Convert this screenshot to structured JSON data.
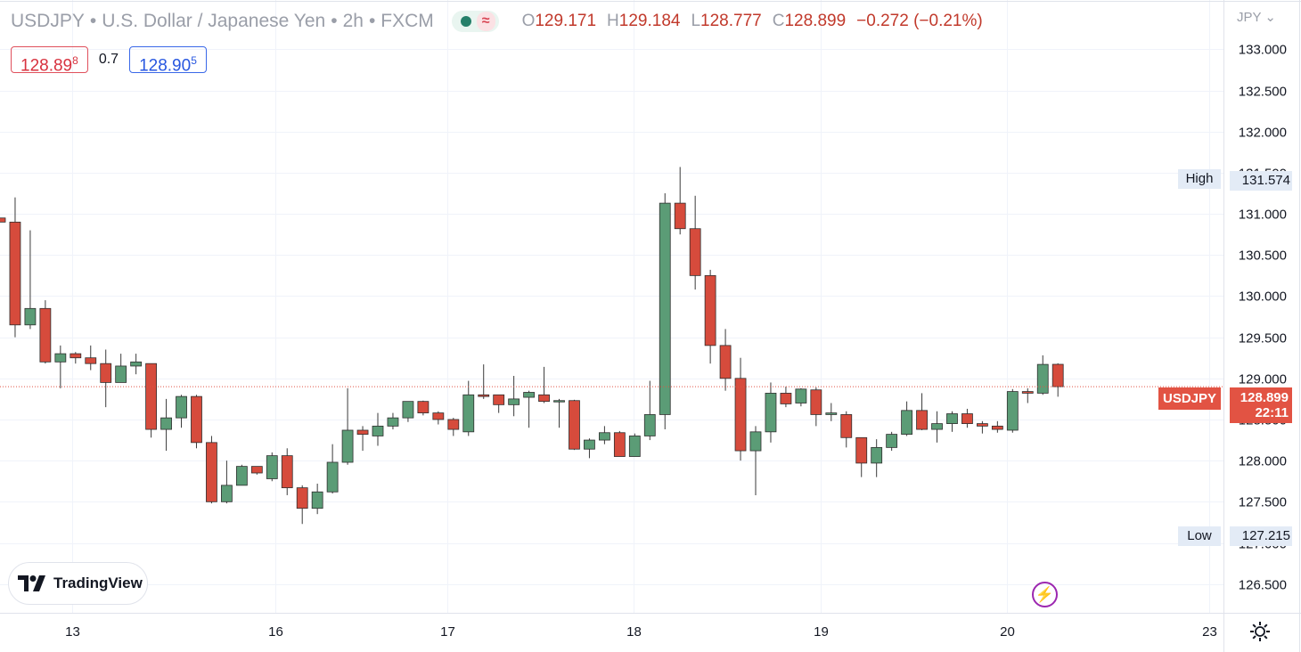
{
  "header": {
    "symbol": "USDJPY",
    "description": "U.S. Dollar / Japanese Yen",
    "interval": "2h",
    "exchange": "FXCM",
    "indicator_icon": "circle-icon",
    "indicator_wave": "≈"
  },
  "ohlc": {
    "o_label": "O",
    "o": "129.171",
    "h_label": "H",
    "h": "129.184",
    "l_label": "L",
    "l": "128.777",
    "c_label": "C",
    "c": "128.899",
    "change": "−0.272 (−0.21%)"
  },
  "quote": {
    "bid_main": "128.89",
    "bid_small": "8",
    "spread": "0.7",
    "ask_main": "128.90",
    "ask_small": "5"
  },
  "axis": {
    "currency": "JPY",
    "currency_caret": "⌄"
  },
  "high_marker": {
    "label": "High",
    "value": "131.574"
  },
  "low_marker": {
    "label": "Low",
    "value": "127.215"
  },
  "current_price": {
    "symbol": "USDJPY",
    "value": "128.899",
    "countdown": "22:11"
  },
  "branding": {
    "name": "TradingView"
  },
  "colors": {
    "up": "#5b9c76",
    "down": "#d64b3c",
    "line": "#e25343"
  },
  "chart_data": {
    "type": "candlestick",
    "title": "USDJPY · U.S. Dollar / Japanese Yen · 2h · FXCM",
    "y_ticks": [
      126.5,
      127.0,
      127.5,
      128.0,
      128.5,
      129.0,
      129.5,
      130.0,
      130.5,
      131.0,
      131.5,
      132.0,
      132.5,
      133.0
    ],
    "ylim": [
      126.15,
      133.6
    ],
    "x_ticks": [
      "13",
      "16",
      "17",
      "18",
      "19",
      "20",
      "23"
    ],
    "x_tick_units": [
      4.8,
      18.2,
      29.6,
      41.9,
      54.3,
      66.6,
      80.0
    ],
    "current_price": 128.899,
    "session_high": 131.574,
    "session_low": 127.215,
    "grid": true,
    "candles": [
      {
        "o": 130.95,
        "h": 130.95,
        "l": 130.9,
        "c": 130.9
      },
      {
        "o": 130.9,
        "h": 131.2,
        "l": 129.5,
        "c": 129.65
      },
      {
        "o": 129.65,
        "h": 130.8,
        "l": 129.6,
        "c": 129.85
      },
      {
        "o": 129.85,
        "h": 129.95,
        "l": 129.18,
        "c": 129.2
      },
      {
        "o": 129.2,
        "h": 129.4,
        "l": 128.88,
        "c": 129.3
      },
      {
        "o": 129.3,
        "h": 129.32,
        "l": 129.18,
        "c": 129.25
      },
      {
        "o": 129.25,
        "h": 129.4,
        "l": 129.1,
        "c": 129.18
      },
      {
        "o": 129.18,
        "h": 129.35,
        "l": 128.65,
        "c": 128.95
      },
      {
        "o": 128.95,
        "h": 129.3,
        "l": 128.95,
        "c": 129.15
      },
      {
        "o": 129.15,
        "h": 129.3,
        "l": 129.05,
        "c": 129.2
      },
      {
        "o": 129.18,
        "h": 129.18,
        "l": 128.28,
        "c": 128.38
      },
      {
        "o": 128.38,
        "h": 128.75,
        "l": 128.12,
        "c": 128.52
      },
      {
        "o": 128.52,
        "h": 128.8,
        "l": 128.4,
        "c": 128.78
      },
      {
        "o": 128.78,
        "h": 128.8,
        "l": 128.15,
        "c": 128.22
      },
      {
        "o": 128.22,
        "h": 128.3,
        "l": 127.48,
        "c": 127.5
      },
      {
        "o": 127.5,
        "h": 128.0,
        "l": 127.48,
        "c": 127.7
      },
      {
        "o": 127.7,
        "h": 127.95,
        "l": 127.7,
        "c": 127.93
      },
      {
        "o": 127.93,
        "h": 127.93,
        "l": 127.83,
        "c": 127.85
      },
      {
        "o": 127.78,
        "h": 128.1,
        "l": 127.75,
        "c": 128.06
      },
      {
        "o": 128.06,
        "h": 128.15,
        "l": 127.58,
        "c": 127.67
      },
      {
        "o": 127.67,
        "h": 127.7,
        "l": 127.23,
        "c": 127.42
      },
      {
        "o": 127.42,
        "h": 127.72,
        "l": 127.35,
        "c": 127.62
      },
      {
        "o": 127.62,
        "h": 128.2,
        "l": 127.6,
        "c": 127.98
      },
      {
        "o": 127.98,
        "h": 128.88,
        "l": 127.95,
        "c": 128.37
      },
      {
        "o": 128.37,
        "h": 128.42,
        "l": 128.12,
        "c": 128.32
      },
      {
        "o": 128.3,
        "h": 128.58,
        "l": 128.18,
        "c": 128.42
      },
      {
        "o": 128.42,
        "h": 128.58,
        "l": 128.38,
        "c": 128.52
      },
      {
        "o": 128.52,
        "h": 128.72,
        "l": 128.47,
        "c": 128.72
      },
      {
        "o": 128.72,
        "h": 128.73,
        "l": 128.55,
        "c": 128.58
      },
      {
        "o": 128.58,
        "h": 128.6,
        "l": 128.44,
        "c": 128.5
      },
      {
        "o": 128.5,
        "h": 128.52,
        "l": 128.3,
        "c": 128.38
      },
      {
        "o": 128.35,
        "h": 128.97,
        "l": 128.3,
        "c": 128.8
      },
      {
        "o": 128.8,
        "h": 129.17,
        "l": 128.75,
        "c": 128.78
      },
      {
        "o": 128.8,
        "h": 128.8,
        "l": 128.58,
        "c": 128.68
      },
      {
        "o": 128.68,
        "h": 129.03,
        "l": 128.54,
        "c": 128.75
      },
      {
        "o": 128.77,
        "h": 128.85,
        "l": 128.4,
        "c": 128.83
      },
      {
        "o": 128.8,
        "h": 129.14,
        "l": 128.7,
        "c": 128.72
      },
      {
        "o": 128.72,
        "h": 128.75,
        "l": 128.4,
        "c": 128.73
      },
      {
        "o": 128.73,
        "h": 128.74,
        "l": 128.13,
        "c": 128.14
      },
      {
        "o": 128.14,
        "h": 128.27,
        "l": 128.03,
        "c": 128.25
      },
      {
        "o": 128.25,
        "h": 128.42,
        "l": 128.2,
        "c": 128.34
      },
      {
        "o": 128.34,
        "h": 128.36,
        "l": 128.05,
        "c": 128.05
      },
      {
        "o": 128.05,
        "h": 128.33,
        "l": 128.05,
        "c": 128.3
      },
      {
        "o": 128.3,
        "h": 128.97,
        "l": 128.25,
        "c": 128.56
      },
      {
        "o": 128.56,
        "h": 131.25,
        "l": 128.38,
        "c": 131.13
      },
      {
        "o": 131.13,
        "h": 131.57,
        "l": 130.75,
        "c": 130.82
      },
      {
        "o": 130.82,
        "h": 131.22,
        "l": 130.08,
        "c": 130.25
      },
      {
        "o": 130.25,
        "h": 130.32,
        "l": 129.18,
        "c": 129.4
      },
      {
        "o": 129.4,
        "h": 129.6,
        "l": 128.85,
        "c": 129.0
      },
      {
        "o": 129.0,
        "h": 129.25,
        "l": 128.0,
        "c": 128.12
      },
      {
        "o": 128.12,
        "h": 128.42,
        "l": 127.58,
        "c": 128.35
      },
      {
        "o": 128.35,
        "h": 128.95,
        "l": 128.22,
        "c": 128.82
      },
      {
        "o": 128.82,
        "h": 128.9,
        "l": 128.65,
        "c": 128.69
      },
      {
        "o": 128.7,
        "h": 128.88,
        "l": 128.66,
        "c": 128.87
      },
      {
        "o": 128.86,
        "h": 128.89,
        "l": 128.42,
        "c": 128.56
      },
      {
        "o": 128.56,
        "h": 128.7,
        "l": 128.48,
        "c": 128.58
      },
      {
        "o": 128.56,
        "h": 128.6,
        "l": 128.16,
        "c": 128.28
      },
      {
        "o": 128.28,
        "h": 128.28,
        "l": 127.8,
        "c": 127.97
      },
      {
        "o": 127.97,
        "h": 128.26,
        "l": 127.8,
        "c": 128.16
      },
      {
        "o": 128.16,
        "h": 128.35,
        "l": 128.12,
        "c": 128.32
      },
      {
        "o": 128.32,
        "h": 128.72,
        "l": 128.3,
        "c": 128.61
      },
      {
        "o": 128.61,
        "h": 128.82,
        "l": 128.37,
        "c": 128.38
      },
      {
        "o": 128.38,
        "h": 128.6,
        "l": 128.22,
        "c": 128.45
      },
      {
        "o": 128.45,
        "h": 128.6,
        "l": 128.35,
        "c": 128.57
      },
      {
        "o": 128.57,
        "h": 128.63,
        "l": 128.4,
        "c": 128.45
      },
      {
        "o": 128.45,
        "h": 128.48,
        "l": 128.33,
        "c": 128.42
      },
      {
        "o": 128.42,
        "h": 128.48,
        "l": 128.34,
        "c": 128.38
      },
      {
        "o": 128.37,
        "h": 128.87,
        "l": 128.34,
        "c": 128.84
      },
      {
        "o": 128.84,
        "h": 128.88,
        "l": 128.7,
        "c": 128.82
      },
      {
        "o": 128.82,
        "h": 129.28,
        "l": 128.8,
        "c": 129.17
      },
      {
        "o": 129.171,
        "h": 129.184,
        "l": 128.777,
        "c": 128.899
      }
    ]
  }
}
